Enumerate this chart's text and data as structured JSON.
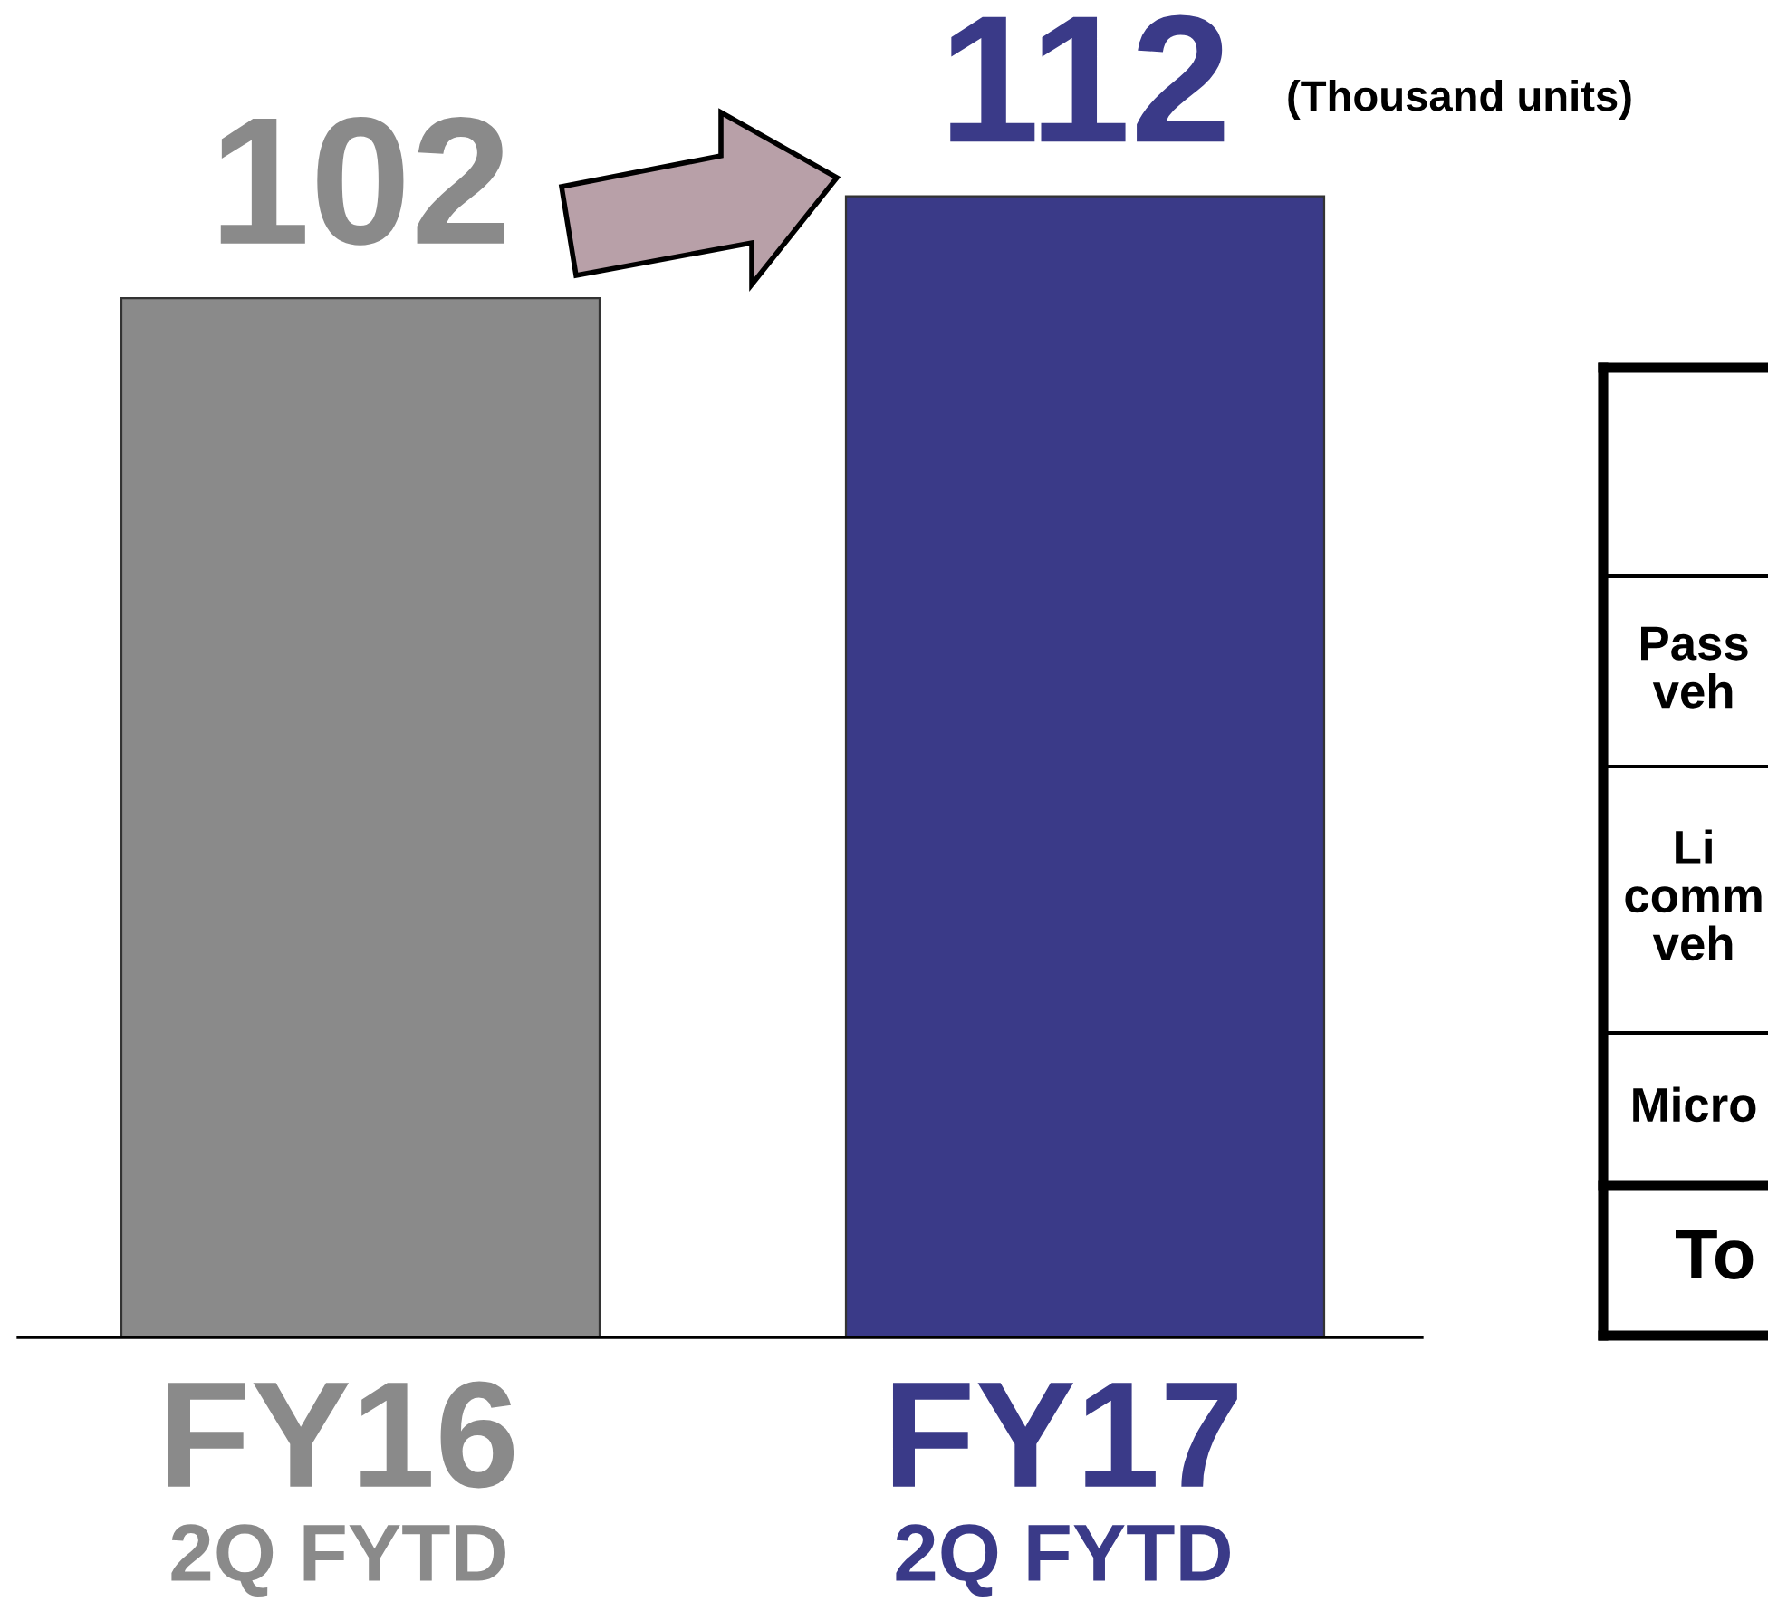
{
  "chart_data": [
    {
      "type": "bar",
      "categories": [
        "FY16\n2Q FYTD",
        "FY17\n2Q FYTD"
      ],
      "values": [
        102,
        112
      ],
      "colors": [
        "#8a8a8a",
        "#3a3a88"
      ],
      "data_labels": true,
      "annotations": [
        "(Thousand units)"
      ]
    },
    {
      "type": "other",
      "annotations": [
        "Pass\nveh",
        "Li\ncomm\nveh",
        "Micro",
        "To"
      ]
    }
  ]
}
